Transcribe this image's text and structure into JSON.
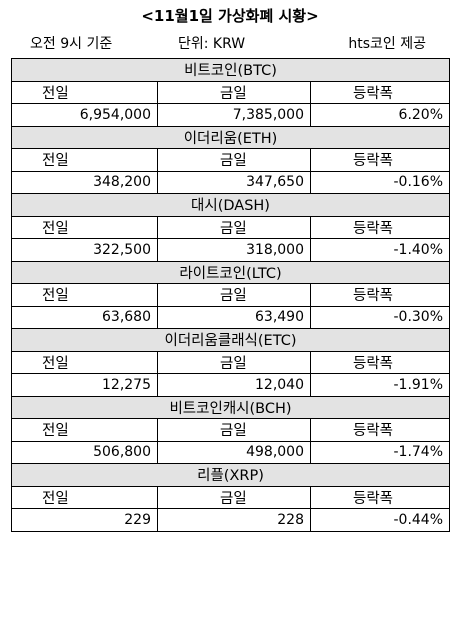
{
  "header": {
    "title": "<11월1일 가상화폐 시황>",
    "time": "오전 9시 기준",
    "unit": "단위: KRW",
    "source": "hts코인 제공"
  },
  "columns": {
    "prev": "전일",
    "today": "금일",
    "change": "등락폭"
  },
  "coins": [
    {
      "name": "비트코인(BTC)",
      "prev": "6,954,000",
      "today": "7,385,000",
      "change": "6.20%"
    },
    {
      "name": "이더리움(ETH)",
      "prev": "348,200",
      "today": "347,650",
      "change": "-0.16%"
    },
    {
      "name": "대시(DASH)",
      "prev": "322,500",
      "today": "318,000",
      "change": "-1.40%"
    },
    {
      "name": "라이트코인(LTC)",
      "prev": "63,680",
      "today": "63,490",
      "change": "-0.30%"
    },
    {
      "name": "이더리움클래식(ETC)",
      "prev": "12,275",
      "today": "12,040",
      "change": "-1.91%"
    },
    {
      "name": "비트코인캐시(BCH)",
      "prev": "506,800",
      "today": "498,000",
      "change": "-1.74%"
    },
    {
      "name": "리플(XRP)",
      "prev": "229",
      "today": "228",
      "change": "-0.44%"
    }
  ]
}
